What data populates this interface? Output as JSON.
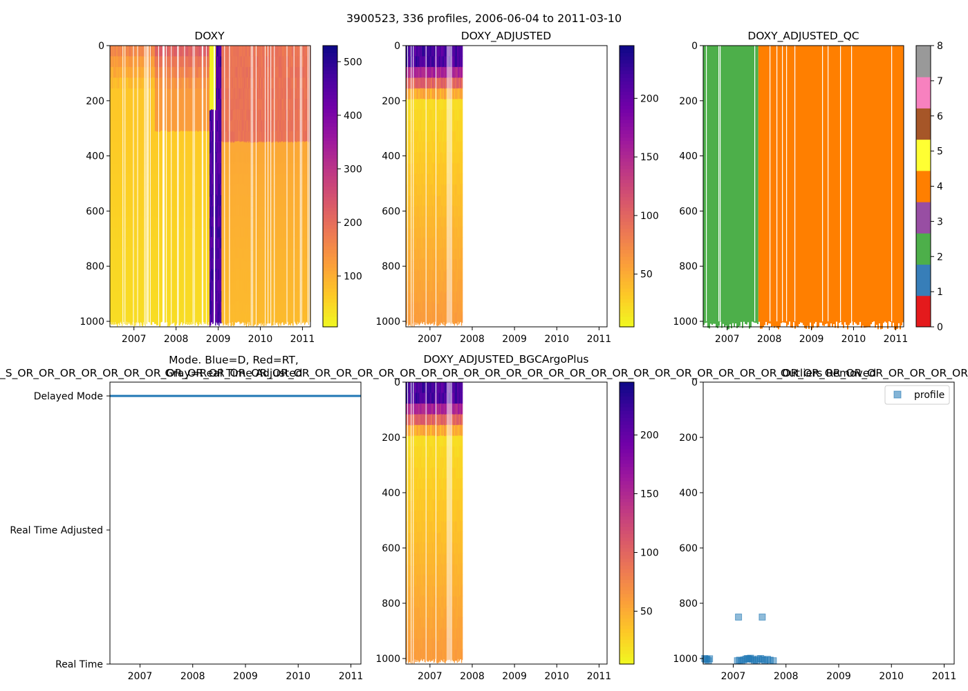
{
  "figure": {
    "suptitle": "3900523, 336 profiles, 2006-06-04 to 2011-03-10",
    "overlap_text": "_S_OR_OR_OR_OR_OR_OR_OR_OR_OR_OR_OR_OR_OR_OR_OR_OR_OR_OR_OR_OR_OR_OR_OR_OR_OR_OR_OR_OR_OR_OR_OR_OR_OR_OR_OR_OR_OR_OR_OR_OR_OR_OR_OR_OR_OR_OR_OR_OR_OR_OR_OR_OR_OR_OR_OR_OR_OR_OR_OR_OR_OR_OR_OR_OR_OR_OR_OR_OR_OR_OR_OR_OR_OR_OR_OR_OR_OR_OR_OR_OR_OR_OR_OR_OR_OR_OR_OR_OR_OR_OR_OR_OR_OR_OR_OR_OR_OR_OR_OR_OR"
  },
  "colors": {
    "plasma_r": [
      "#f0f921",
      "#fdca26",
      "#fb9f3a",
      "#ed7953",
      "#d8576b",
      "#bd3786",
      "#9c179e",
      "#7201a8",
      "#46039f",
      "#0d0887"
    ],
    "qc": [
      "#e41a1c",
      "#377eb8",
      "#4daf4a",
      "#984ea3",
      "#ff7f00",
      "#ffff33",
      "#a65628",
      "#f781bf",
      "#999999"
    ],
    "mode_line": "#1f77b4",
    "scatter": "#1f77b4"
  },
  "chart_data": [
    {
      "id": "doxy",
      "type": "heatmap",
      "title": "DOXY",
      "x_range": [
        2006.43,
        2011.19
      ],
      "y_range": [
        1020,
        0
      ],
      "x_ticks": [
        2007,
        2008,
        2009,
        2010,
        2011
      ],
      "x_tick_labels": [
        "2007",
        "2008",
        "2009",
        "2010",
        "2011"
      ],
      "y_ticks": [
        0,
        200,
        400,
        600,
        800,
        1000
      ],
      "y_tick_labels": [
        "0",
        "200",
        "400",
        "600",
        "800",
        "1000"
      ],
      "data_end": 2011.19,
      "colorbar": {
        "cmap": "plasma_r",
        "range": [
          5,
          530
        ],
        "ticks": [
          100,
          200,
          300,
          400,
          500
        ],
        "tick_labels": [
          "100",
          "200",
          "300",
          "400",
          "500"
        ]
      },
      "notes": "surface ~150-250 umol/kg, deep ~30-60; high-value anomaly (~400-500) near 2008.8-2009.1"
    },
    {
      "id": "doxy_adjusted",
      "type": "heatmap",
      "title": "DOXY_ADJUSTED",
      "x_range": [
        2006.43,
        2011.19
      ],
      "y_range": [
        1020,
        0
      ],
      "x_ticks": [
        2007,
        2008,
        2009,
        2010,
        2011
      ],
      "x_tick_labels": [
        "2007",
        "2008",
        "2009",
        "2010",
        "2011"
      ],
      "y_ticks": [
        0,
        200,
        400,
        600,
        800,
        1000
      ],
      "y_tick_labels": [
        "0",
        "200",
        "400",
        "600",
        "800",
        "1000"
      ],
      "data_end": 2007.77,
      "colorbar": {
        "cmap": "plasma_r",
        "range": [
          5,
          245
        ],
        "ticks": [
          50,
          100,
          150,
          200
        ],
        "tick_labels": [
          "50",
          "100",
          "150",
          "200"
        ]
      }
    },
    {
      "id": "doxy_adjusted_qc",
      "type": "heatmap",
      "title": "DOXY_ADJUSTED_QC",
      "x_range": [
        2006.43,
        2011.19
      ],
      "y_range": [
        1020,
        0
      ],
      "x_ticks": [
        2007,
        2008,
        2009,
        2010,
        2011
      ],
      "x_tick_labels": [
        "2007",
        "2008",
        "2009",
        "2010",
        "2011"
      ],
      "y_ticks": [
        0,
        200,
        400,
        600,
        800,
        1000
      ],
      "y_tick_labels": [
        "0",
        "200",
        "400",
        "600",
        "800",
        "1000"
      ],
      "segments": [
        {
          "from": 2006.43,
          "to": 2007.74,
          "qc": 2
        },
        {
          "from": 2007.74,
          "to": 2011.19,
          "qc": 4
        }
      ],
      "colorbar": {
        "cmap": "qc",
        "range": [
          0,
          8
        ],
        "ticks": [
          0,
          1,
          2,
          3,
          4,
          5,
          6,
          7,
          8
        ],
        "tick_labels": [
          "0",
          "1",
          "2",
          "3",
          "4",
          "5",
          "6",
          "7",
          "8"
        ]
      }
    },
    {
      "id": "mode",
      "type": "line",
      "title_line1": "Mode. Blue=D, Red=RT,",
      "title_line2": "Gray=Real Time Adjusted",
      "x_range": [
        2006.43,
        2011.19
      ],
      "x_ticks": [
        2007,
        2008,
        2009,
        2010,
        2011
      ],
      "x_tick_labels": [
        "2007",
        "2008",
        "2009",
        "2010",
        "2011"
      ],
      "y_categories": [
        "Delayed Mode",
        "Real Time Adjusted",
        "Real Time"
      ],
      "series": [
        {
          "name": "mode",
          "x": [
            2006.43,
            2011.19
          ],
          "level": "Delayed Mode"
        }
      ]
    },
    {
      "id": "doxy_bgcargoplus",
      "type": "heatmap",
      "title": "DOXY_ADJUSTED_BGCArgoPlus",
      "x_range": [
        2006.43,
        2011.19
      ],
      "y_range": [
        1020,
        0
      ],
      "x_ticks": [
        2007,
        2008,
        2009,
        2010,
        2011
      ],
      "x_tick_labels": [
        "2007",
        "2008",
        "2009",
        "2010",
        "2011"
      ],
      "y_ticks": [
        0,
        200,
        400,
        600,
        800,
        1000
      ],
      "y_tick_labels": [
        "0",
        "200",
        "400",
        "600",
        "800",
        "1000"
      ],
      "data_end": 2007.77,
      "colorbar": {
        "cmap": "plasma_r",
        "range": [
          5,
          245
        ],
        "ticks": [
          50,
          100,
          150,
          200
        ],
        "tick_labels": [
          "50",
          "100",
          "150",
          "200"
        ]
      }
    },
    {
      "id": "outliers",
      "type": "scatter",
      "title": "Outliers Removed",
      "x_range": [
        2006.43,
        2011.19
      ],
      "y_range": [
        1020,
        0
      ],
      "x_ticks": [
        2007,
        2008,
        2009,
        2010,
        2011
      ],
      "x_tick_labels": [
        "2007",
        "2008",
        "2009",
        "2010",
        "2011"
      ],
      "y_ticks": [
        0,
        200,
        400,
        600,
        800,
        1000
      ],
      "y_tick_labels": [
        "0",
        "200",
        "400",
        "600",
        "800",
        "1000"
      ],
      "legend": {
        "label": "profile",
        "placement": "top-right"
      },
      "points": [
        {
          "x": 2006.46,
          "y": 1000
        },
        {
          "x": 2006.48,
          "y": 1004
        },
        {
          "x": 2006.5,
          "y": 1002
        },
        {
          "x": 2006.53,
          "y": 1008
        },
        {
          "x": 2006.55,
          "y": 1001
        },
        {
          "x": 2007.1,
          "y": 850
        },
        {
          "x": 2007.55,
          "y": 850
        },
        {
          "x": 2007.08,
          "y": 1008
        },
        {
          "x": 2007.12,
          "y": 1006
        },
        {
          "x": 2007.16,
          "y": 1009
        },
        {
          "x": 2007.2,
          "y": 1005
        },
        {
          "x": 2007.24,
          "y": 1002
        },
        {
          "x": 2007.27,
          "y": 1000
        },
        {
          "x": 2007.3,
          "y": 1001
        },
        {
          "x": 2007.33,
          "y": 999
        },
        {
          "x": 2007.36,
          "y": 1003
        },
        {
          "x": 2007.4,
          "y": 1006
        },
        {
          "x": 2007.44,
          "y": 1008
        },
        {
          "x": 2007.48,
          "y": 1002
        },
        {
          "x": 2007.52,
          "y": 1000
        },
        {
          "x": 2007.56,
          "y": 1004
        },
        {
          "x": 2007.6,
          "y": 1007
        },
        {
          "x": 2007.65,
          "y": 1003
        },
        {
          "x": 2007.7,
          "y": 1006
        },
        {
          "x": 2007.76,
          "y": 1008
        }
      ]
    }
  ]
}
